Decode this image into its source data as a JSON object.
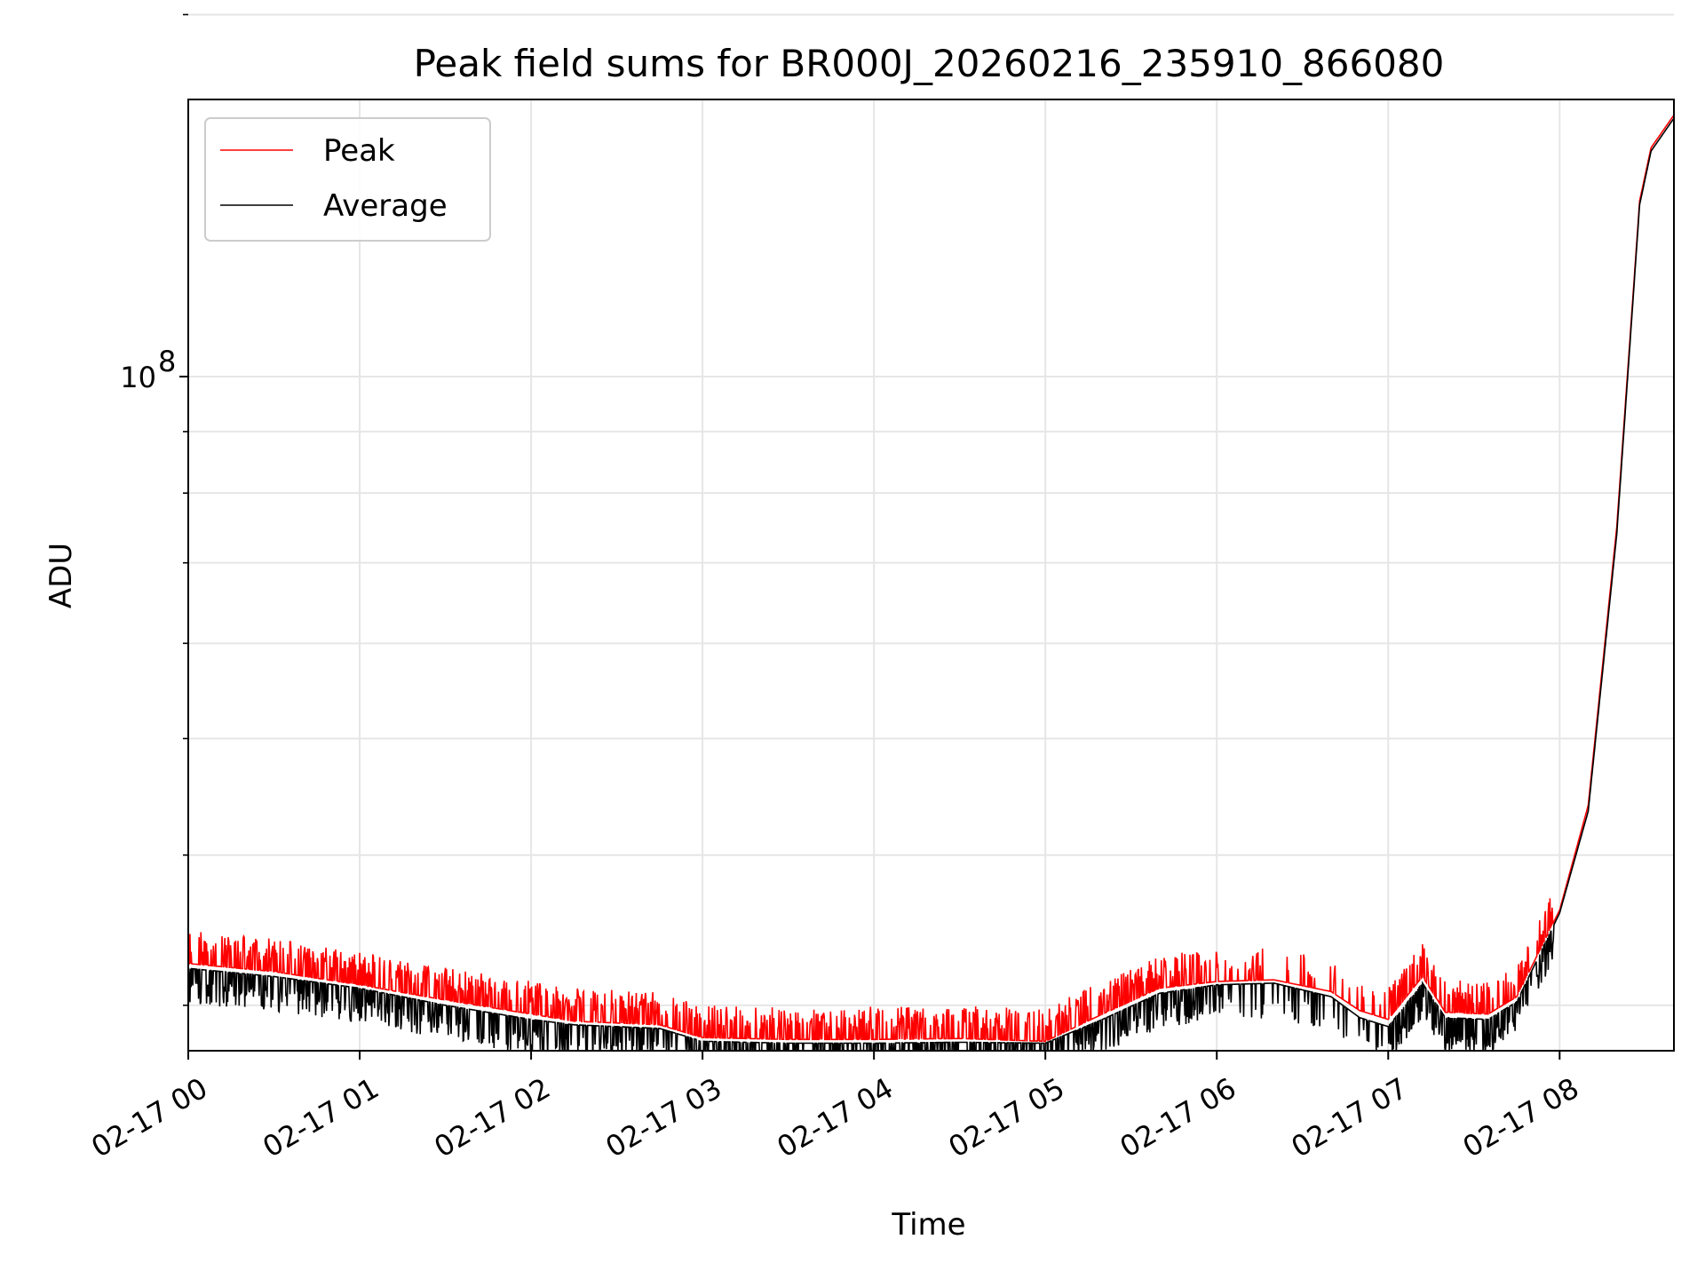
{
  "chart_data": {
    "type": "line",
    "title": "Peak field sums for BR000J_20260216_235910_866080",
    "xlabel": "Time",
    "ylabel": "ADU",
    "y_scale": "log",
    "ylim": [
      27500000,
      170000000
    ],
    "x_range": [
      "02-17 00:00",
      "02-17 08:40"
    ],
    "x_ticks": [
      "02-17 00",
      "02-17 01",
      "02-17 02",
      "02-17 03",
      "02-17 04",
      "02-17 05",
      "02-17 06",
      "02-17 07",
      "02-17 08"
    ],
    "y_tick_label": {
      "base": "10",
      "exp": "8",
      "value": 100000000
    },
    "y_minor_ticks": [
      30000000,
      40000000,
      50000000,
      60000000,
      70000000,
      80000000,
      90000000,
      200000000
    ],
    "grid": true,
    "legend_position": "top-left",
    "series": [
      {
        "name": "Peak",
        "color": "#ff0000",
        "x": [
          "02-17 00:00",
          "02-17 00:30",
          "02-17 01:00",
          "02-17 01:30",
          "02-17 02:00",
          "02-17 02:15",
          "02-17 02:30",
          "02-17 02:45",
          "02-17 03:00",
          "02-17 03:30",
          "02-17 04:00",
          "02-17 04:30",
          "02-17 05:00",
          "02-17 05:20",
          "02-17 05:40",
          "02-17 06:00",
          "02-17 06:20",
          "02-17 06:40",
          "02-17 06:50",
          "02-17 07:00",
          "02-17 07:12",
          "02-17 07:20",
          "02-17 07:35",
          "02-17 07:45",
          "02-17 08:00",
          "02-17 08:10",
          "02-17 08:20",
          "02-17 08:28",
          "02-17 08:32",
          "02-17 08:40"
        ],
        "values": [
          32500000,
          32000000,
          31200000,
          30300000,
          29500000,
          29100000,
          29000000,
          28900000,
          28200000,
          28100000,
          28100000,
          28150000,
          28000000,
          29500000,
          31000000,
          31400000,
          31500000,
          30800000,
          29700000,
          29200000,
          31700000,
          29600000,
          29500000,
          30500000,
          36000000,
          44000000,
          75000000,
          140000000,
          155000000,
          165000000
        ]
      },
      {
        "name": "Average",
        "color": "#000000",
        "x": [
          "02-17 00:00",
          "02-17 00:30",
          "02-17 01:00",
          "02-17 01:30",
          "02-17 02:00",
          "02-17 02:15",
          "02-17 02:30",
          "02-17 02:45",
          "02-17 03:00",
          "02-17 03:30",
          "02-17 04:00",
          "02-17 04:30",
          "02-17 05:00",
          "02-17 05:20",
          "02-17 05:40",
          "02-17 06:00",
          "02-17 06:20",
          "02-17 06:40",
          "02-17 06:50",
          "02-17 07:00",
          "02-17 07:12",
          "02-17 07:20",
          "02-17 07:35",
          "02-17 07:45",
          "02-17 08:00",
          "02-17 08:10",
          "02-17 08:20",
          "02-17 08:28",
          "02-17 08:32",
          "02-17 08:40"
        ],
        "values": [
          32200000,
          31700000,
          31000000,
          30000000,
          29200000,
          28900000,
          28800000,
          28700000,
          28000000,
          27900000,
          27900000,
          27950000,
          27900000,
          29200000,
          30700000,
          31200000,
          31300000,
          30500000,
          29300000,
          28800000,
          31300000,
          29300000,
          29200000,
          30200000,
          35800000,
          43500000,
          74000000,
          139000000,
          154000000,
          164000000
        ]
      }
    ]
  }
}
